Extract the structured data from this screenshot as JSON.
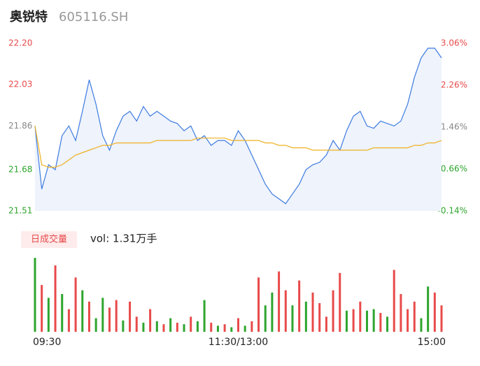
{
  "header": {
    "title": "奥锐特",
    "code": "605116.SH"
  },
  "chart_data": [
    {
      "type": "line",
      "x": [
        0,
        4,
        8,
        12,
        16,
        20,
        24,
        28,
        32,
        36,
        40,
        44,
        48,
        52,
        56,
        60,
        64,
        68,
        72,
        76,
        80,
        84,
        88,
        92,
        96,
        100,
        104,
        108,
        112,
        116,
        120,
        124,
        128,
        132,
        136,
        140,
        144,
        148,
        152,
        156,
        160,
        164,
        168,
        172,
        176,
        180,
        184,
        188,
        192,
        196,
        200,
        204,
        208,
        212,
        216,
        220,
        224,
        228,
        232,
        236,
        240
      ],
      "xlim": [
        0,
        240
      ],
      "xticks": [
        {
          "value": 0,
          "label": "09:30"
        },
        {
          "value": 120,
          "label": "11:30/13:00"
        },
        {
          "value": 240,
          "label": "15:00"
        }
      ],
      "ylim": [
        21.51,
        22.2
      ],
      "yticks": [
        {
          "value": 21.51,
          "label": "21.51"
        },
        {
          "value": 21.68,
          "label": "21.68"
        },
        {
          "value": 21.86,
          "label": "21.86"
        },
        {
          "value": 22.03,
          "label": "22.03"
        },
        {
          "value": 22.2,
          "label": "22.20"
        }
      ],
      "y2lim": [
        -0.14,
        3.06
      ],
      "y2ticks": [
        {
          "value": -0.14,
          "label": "-0.14%"
        },
        {
          "value": 0.66,
          "label": "0.66%"
        },
        {
          "value": 1.46,
          "label": "1.46%"
        },
        {
          "value": 2.26,
          "label": "2.26%"
        },
        {
          "value": 3.06,
          "label": "3.06%"
        }
      ],
      "series": [
        {
          "color": "#3d7be0",
          "values": [
            21.86,
            21.6,
            21.7,
            21.68,
            21.82,
            21.86,
            21.8,
            21.92,
            22.05,
            21.95,
            21.82,
            21.76,
            21.84,
            21.9,
            21.92,
            21.88,
            21.94,
            21.9,
            21.92,
            21.9,
            21.88,
            21.87,
            21.84,
            21.86,
            21.8,
            21.82,
            21.78,
            21.8,
            21.8,
            21.78,
            21.84,
            21.8,
            21.74,
            21.68,
            21.62,
            21.58,
            21.56,
            21.54,
            21.58,
            21.62,
            21.68,
            21.7,
            21.71,
            21.74,
            21.8,
            21.76,
            21.84,
            21.9,
            21.92,
            21.86,
            21.85,
            21.88,
            21.87,
            21.86,
            21.88,
            21.95,
            22.06,
            22.14,
            22.18,
            22.18,
            22.14
          ]
        },
        {
          "color": "#f0b020",
          "values": [
            21.86,
            21.7,
            21.69,
            21.69,
            21.7,
            21.72,
            21.74,
            21.75,
            21.76,
            21.77,
            21.78,
            21.78,
            21.79,
            21.79,
            21.79,
            21.79,
            21.79,
            21.79,
            21.8,
            21.8,
            21.8,
            21.8,
            21.8,
            21.8,
            21.81,
            21.81,
            21.81,
            21.81,
            21.81,
            21.8,
            21.8,
            21.8,
            21.8,
            21.8,
            21.79,
            21.79,
            21.78,
            21.78,
            21.77,
            21.77,
            21.77,
            21.76,
            21.76,
            21.76,
            21.76,
            21.76,
            21.76,
            21.76,
            21.76,
            21.76,
            21.77,
            21.77,
            21.77,
            21.77,
            21.77,
            21.77,
            21.78,
            21.78,
            21.79,
            21.79,
            21.8
          ]
        }
      ]
    },
    {
      "type": "bar",
      "legend": "日成交量",
      "note": "vol: 1.31万手",
      "x": [
        0,
        4,
        8,
        12,
        16,
        20,
        24,
        28,
        32,
        36,
        40,
        44,
        48,
        52,
        56,
        60,
        64,
        68,
        72,
        76,
        80,
        84,
        88,
        92,
        96,
        100,
        104,
        108,
        112,
        116,
        120,
        124,
        128,
        132,
        136,
        140,
        144,
        148,
        152,
        156,
        160,
        164,
        168,
        172,
        176,
        180,
        184,
        188,
        192,
        196,
        200,
        204,
        208,
        212,
        216,
        220,
        224,
        228,
        232,
        236,
        240
      ],
      "ylim": [
        0,
        100
      ],
      "values": [
        98,
        62,
        45,
        88,
        50,
        30,
        72,
        55,
        40,
        18,
        45,
        32,
        42,
        15,
        40,
        20,
        12,
        30,
        14,
        10,
        18,
        12,
        10,
        20,
        14,
        42,
        12,
        8,
        10,
        6,
        18,
        8,
        14,
        72,
        35,
        52,
        80,
        55,
        35,
        68,
        40,
        52,
        38,
        20,
        55,
        78,
        28,
        30,
        40,
        28,
        30,
        25,
        20,
        82,
        50,
        30,
        40,
        18,
        60,
        52,
        35
      ],
      "colors": [
        "#2ea52e",
        "#e84a4a",
        "#2ea52e",
        "#e84a4a",
        "#2ea52e",
        "#e84a4a",
        "#e84a4a",
        "#2ea52e",
        "#e84a4a",
        "#2ea52e",
        "#2ea52e",
        "#e84a4a",
        "#e84a4a",
        "#2ea52e",
        "#e84a4a",
        "#e84a4a",
        "#2ea52e",
        "#e84a4a",
        "#2ea52e",
        "#e84a4a",
        "#2ea52e",
        "#e84a4a",
        "#2ea52e",
        "#e84a4a",
        "#2ea52e",
        "#2ea52e",
        "#e84a4a",
        "#2ea52e",
        "#e84a4a",
        "#2ea52e",
        "#e84a4a",
        "#2ea52e",
        "#e84a4a",
        "#e84a4a",
        "#2ea52e",
        "#2ea52e",
        "#e84a4a",
        "#e84a4a",
        "#2ea52e",
        "#e84a4a",
        "#2ea52e",
        "#e84a4a",
        "#e84a4a",
        "#e84a4a",
        "#e84a4a",
        "#e84a4a",
        "#2ea52e",
        "#e84a4a",
        "#e84a4a",
        "#2ea52e",
        "#2ea52e",
        "#e84a4a",
        "#2ea52e",
        "#e84a4a",
        "#e84a4a",
        "#e84a4a",
        "#e84a4a",
        "#2ea52e",
        "#2ea52e",
        "#e84a4a",
        "#e84a4a"
      ]
    }
  ]
}
